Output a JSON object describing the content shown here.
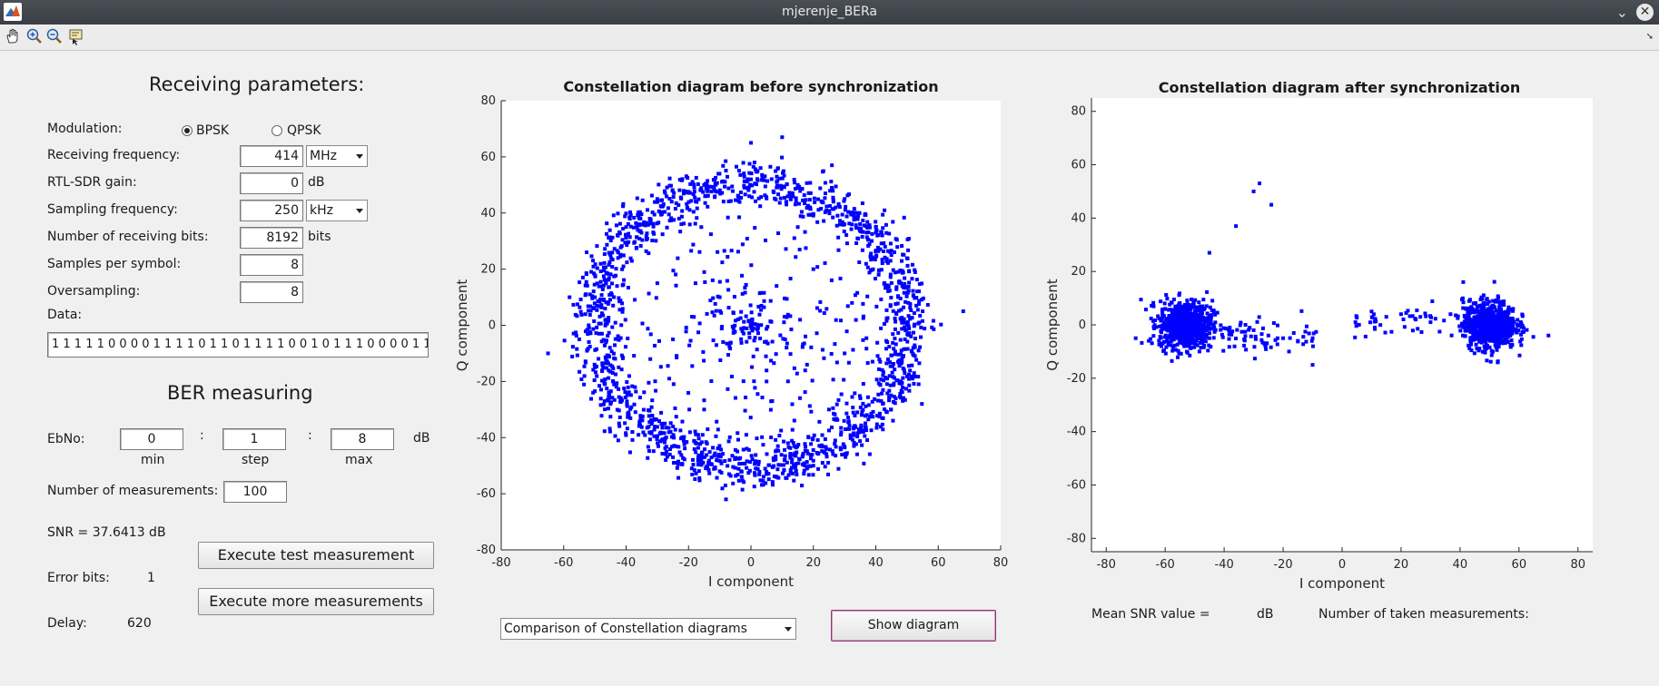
{
  "window": {
    "title": "mjerenje_BERa"
  },
  "toolbar": {
    "icons": [
      "pan-icon",
      "zoom-in-icon",
      "zoom-out-icon",
      "data-cursor-icon"
    ]
  },
  "receiving": {
    "heading": "Receiving parameters:",
    "modulation_label": "Modulation:",
    "bpsk": "BPSK",
    "qpsk": "QPSK",
    "selected": "BPSK",
    "freq_label": "Receiving frequency:",
    "freq_value": "414",
    "freq_unit": "MHz",
    "gain_label": "RTL-SDR gain:",
    "gain_value": "0",
    "gain_unit": "dB",
    "fs_label": "Sampling frequency:",
    "fs_value": "250",
    "fs_unit": "kHz",
    "nbits_label": "Number of receiving bits:",
    "nbits_value": "8192",
    "nbits_unit": "bits",
    "sps_label": "Samples per symbol:",
    "sps_value": "8",
    "os_label": "Oversampling:",
    "os_value": "8",
    "data_label": "Data:",
    "data_value": "1 1 1 1 1 0 0 0 0 1 1 1 1 0 1 1 0 1 1 1 1 0 0 1 0 1 1 1 0 0 0 0 1 1 1"
  },
  "ber": {
    "heading": "BER measuring",
    "ebno_label": "EbNo:",
    "min_value": "0",
    "step_value": "1",
    "max_value": "8",
    "colon": ":",
    "unit": "dB",
    "min_label": "min",
    "step_label": "step",
    "max_label": "max",
    "nmeas_label": "Number of measurements:",
    "nmeas_value": "100",
    "snr_text": "SNR =  37.6413  dB",
    "error_label": "Error bits:",
    "error_value": "1",
    "delay_label": "Delay:",
    "delay_value": "620",
    "test_button": "Execute test measurement",
    "more_button": "Execute more measurements"
  },
  "bottom": {
    "dropdown_value": "Comparison of Constellation diagrams",
    "show_button": "Show diagram",
    "mean_snr_label": "Mean SNR value =",
    "mean_snr_unit": "dB",
    "taken_label": "Number of taken measurements:"
  },
  "chart_data": [
    {
      "type": "scatter",
      "title": "Constellation diagram before synchronization",
      "xlabel": "I component",
      "ylabel": "Q component",
      "xlim": [
        -80,
        80
      ],
      "ylim": [
        -80,
        80
      ],
      "xticks": [
        "-80",
        "-60",
        "-40",
        "-20",
        "0",
        "20",
        "40",
        "60",
        "80"
      ],
      "yticks": [
        "80",
        "60",
        "40",
        "20",
        "0",
        "-20",
        "-40",
        "-60",
        "-80"
      ],
      "color": "#0000ff",
      "points": [
        [
          50,
          0
        ],
        [
          48,
          15
        ],
        [
          45,
          25
        ],
        [
          40,
          35
        ],
        [
          30,
          45
        ],
        [
          15,
          50
        ],
        [
          0,
          52
        ],
        [
          -15,
          50
        ],
        [
          -30,
          45
        ],
        [
          -40,
          35
        ],
        [
          -45,
          25
        ],
        [
          -50,
          10
        ],
        [
          -52,
          0
        ],
        [
          -50,
          -15
        ],
        [
          -45,
          -28
        ],
        [
          -38,
          -38
        ],
        [
          -25,
          -47
        ],
        [
          -10,
          -52
        ],
        [
          5,
          -53
        ],
        [
          20,
          -50
        ],
        [
          33,
          -43
        ],
        [
          42,
          -33
        ],
        [
          48,
          -20
        ],
        [
          52,
          -8
        ],
        [
          55,
          5
        ],
        [
          -55,
          -5
        ],
        [
          0,
          65
        ],
        [
          10,
          67
        ],
        [
          -8,
          -62
        ],
        [
          68,
          5
        ],
        [
          -65,
          -10
        ],
        [
          20,
          20
        ],
        [
          -10,
          10
        ],
        [
          5,
          -20
        ],
        [
          -25,
          -5
        ],
        [
          30,
          -10
        ],
        [
          -15,
          -30
        ],
        [
          15,
          35
        ],
        [
          -30,
          15
        ],
        [
          0,
          0
        ],
        [
          25,
          -30
        ]
      ]
    },
    {
      "type": "scatter",
      "title": "Constellation diagram after synchronization",
      "xlabel": "I component",
      "ylabel": "Q component",
      "xlim": [
        -85,
        85
      ],
      "ylim": [
        -85,
        85
      ],
      "xticks": [
        "-80",
        "-60",
        "-40",
        "-20",
        "0",
        "20",
        "40",
        "60",
        "80"
      ],
      "yticks": [
        "80",
        "60",
        "40",
        "20",
        "0",
        "-20",
        "-40",
        "-60",
        "-80"
      ],
      "color": "#0000ff",
      "points": [
        [
          -53,
          0
        ],
        [
          -55,
          3
        ],
        [
          -50,
          -3
        ],
        [
          -58,
          -2
        ],
        [
          -48,
          5
        ],
        [
          -52,
          -8
        ],
        [
          -60,
          6
        ],
        [
          -45,
          -5
        ],
        [
          50,
          0
        ],
        [
          52,
          3
        ],
        [
          48,
          -3
        ],
        [
          55,
          -2
        ],
        [
          46,
          5
        ],
        [
          53,
          -8
        ],
        [
          58,
          6
        ],
        [
          44,
          -5
        ],
        [
          -30,
          -2
        ],
        [
          -25,
          -4
        ],
        [
          -20,
          -5
        ],
        [
          -15,
          -6
        ],
        [
          -10,
          -5
        ],
        [
          -18,
          -10
        ],
        [
          10,
          5
        ],
        [
          15,
          3
        ],
        [
          20,
          4
        ],
        [
          25,
          2
        ],
        [
          30,
          1
        ],
        [
          -30,
          50
        ],
        [
          -28,
          53
        ],
        [
          -36,
          37
        ],
        [
          -24,
          45
        ],
        [
          -45,
          27
        ],
        [
          -70,
          -5
        ],
        [
          70,
          -4
        ],
        [
          -10,
          -15
        ]
      ]
    }
  ]
}
